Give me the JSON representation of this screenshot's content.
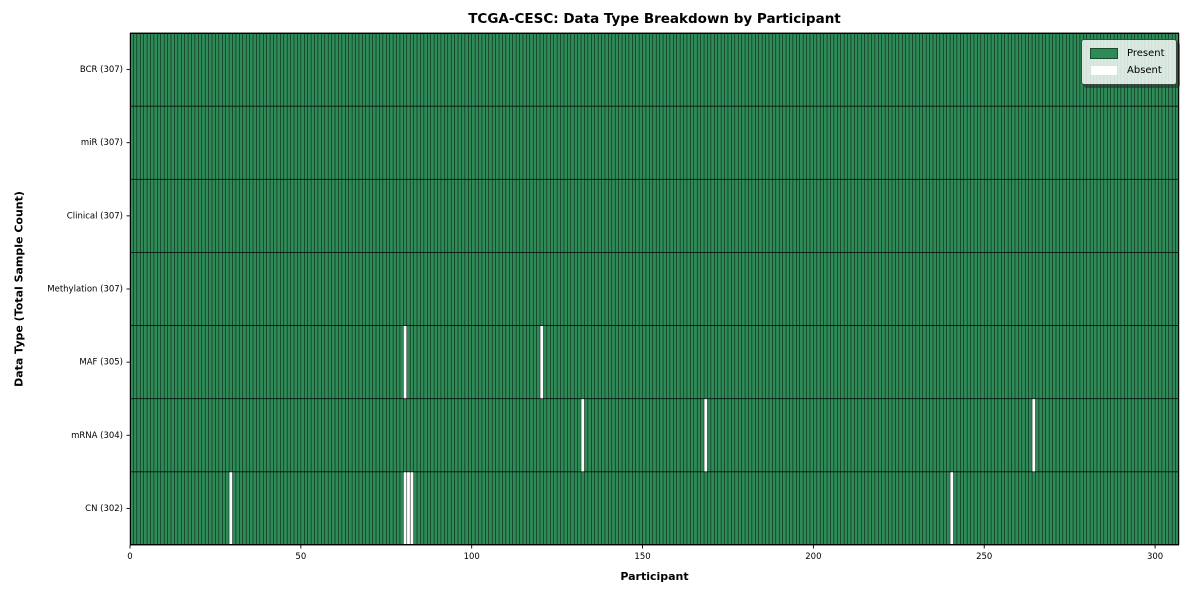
{
  "chart_data": {
    "type": "heatmap",
    "title": "TCGA-CESC: Data Type Breakdown by Participant",
    "xlabel": "Participant",
    "ylabel": "Data Type (Total Sample Count)",
    "n_participants": 307,
    "x_ticks": [
      0,
      50,
      100,
      150,
      200,
      250,
      300
    ],
    "rows": [
      {
        "label": "BCR (307)",
        "total": 307,
        "absent": []
      },
      {
        "label": "miR (307)",
        "total": 307,
        "absent": []
      },
      {
        "label": "Clinical (307)",
        "total": 307,
        "absent": []
      },
      {
        "label": "Methylation (307)",
        "total": 307,
        "absent": []
      },
      {
        "label": "MAF (305)",
        "total": 305,
        "absent": [
          80,
          120
        ]
      },
      {
        "label": "mRNA (304)",
        "total": 304,
        "absent": [
          132,
          168,
          264
        ]
      },
      {
        "label": "CN (302)",
        "total": 302,
        "absent": [
          29,
          80,
          81,
          82,
          240
        ]
      }
    ],
    "legend": [
      {
        "label": "Present",
        "color": "#2e8b57"
      },
      {
        "label": "Absent",
        "color": "#ffffff"
      }
    ],
    "colors": {
      "present": "#2e8b57",
      "absent": "#ffffff",
      "bar_edge": "#000000",
      "spine": "#000000",
      "text": "#000000"
    },
    "layout_hints": {
      "legend_position": "upper right",
      "grid": "off",
      "x_range": [
        0,
        307
      ]
    }
  }
}
